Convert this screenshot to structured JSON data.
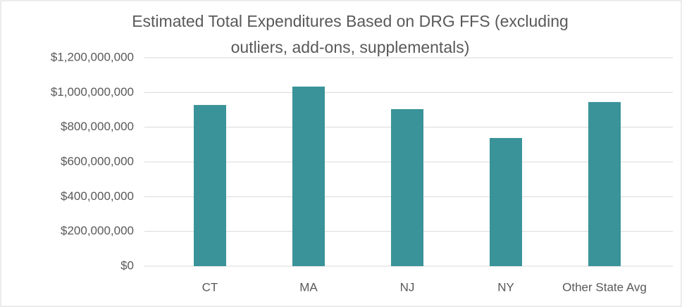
{
  "chart_data": {
    "type": "bar",
    "title": [
      "Estimated Total Expenditures Based on DRG FFS (excluding",
      "outliers, add-ons, supplementals)"
    ],
    "categories": [
      "CT",
      "MA",
      "NJ",
      "NY",
      "Other State Avg"
    ],
    "values": [
      928000000,
      1034000000,
      904000000,
      738000000,
      945000000
    ],
    "color": "#3a9399",
    "ylim": [
      0,
      1200000000
    ],
    "yticks": [
      {
        "value": 0,
        "label": "$0"
      },
      {
        "value": 200000000,
        "label": "$200,000,000"
      },
      {
        "value": 400000000,
        "label": "$400,000,000"
      },
      {
        "value": 600000000,
        "label": "$600,000,000"
      },
      {
        "value": 800000000,
        "label": "$800,000,000"
      },
      {
        "value": 1000000000,
        "label": "$1,000,000,000"
      },
      {
        "value": 1200000000,
        "label": "$1,200,000,000"
      }
    ],
    "grid": true
  }
}
